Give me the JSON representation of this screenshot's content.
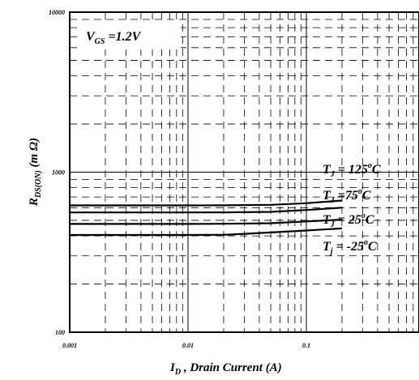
{
  "chart_data": {
    "type": "line",
    "title": "",
    "xlabel": {
      "main": "I",
      "sub": "D",
      "rest": " , Drain Current (A)"
    },
    "ylabel": {
      "main": "R",
      "sub": "DS(ON)",
      "rest": " (m Ω)"
    },
    "xscale": "log",
    "yscale": "log",
    "xlim": [
      0.001,
      1
    ],
    "ylim": [
      100,
      10000
    ],
    "x_ticks": [
      {
        "value": 0.001,
        "label": "0.001"
      },
      {
        "value": 0.01,
        "label": "0.01"
      },
      {
        "value": 0.1,
        "label": "0.1"
      }
    ],
    "y_ticks": [
      {
        "value": 100,
        "label": "100"
      },
      {
        "value": 1000,
        "label": "1000"
      },
      {
        "value": 10000,
        "label": "10000"
      }
    ],
    "grid": true,
    "annotations": {
      "vgs": {
        "main": "V",
        "sub": "GS",
        "rest": " =1.2V"
      }
    },
    "series": [
      {
        "name": "T_J = 125°C",
        "label": {
          "main": "T",
          "sub": "J",
          "rest": " = 125",
          "sup": "o",
          "unit": "C"
        },
        "x": [
          0.001,
          0.005,
          0.01,
          0.02,
          0.05,
          0.1,
          0.2
        ],
        "y": [
          620,
          620,
          620,
          621,
          625,
          640,
          665
        ]
      },
      {
        "name": "T_J = 75°C",
        "label": {
          "main": "T",
          "sub": "J",
          "rest": " =75",
          "sup": "o",
          "unit": "C"
        },
        "x": [
          0.001,
          0.005,
          0.01,
          0.02,
          0.05,
          0.1,
          0.2
        ],
        "y": [
          560,
          560,
          560,
          561,
          565,
          580,
          600
        ]
      },
      {
        "name": "T_J = 25°C",
        "label": {
          "main": "T",
          "sub": "J",
          "rest": " = 25",
          "sup": "o",
          "unit": "C"
        },
        "x": [
          0.001,
          0.005,
          0.01,
          0.02,
          0.05,
          0.1,
          0.2
        ],
        "y": [
          475,
          475,
          475,
          476,
          480,
          492,
          505
        ]
      },
      {
        "name": "T_J = -25°C",
        "label": {
          "main": "T",
          "sub": "j",
          "rest": " = -25",
          "sup": "o",
          "unit": "C"
        },
        "x": [
          0.001,
          0.005,
          0.01,
          0.02,
          0.03,
          0.05,
          0.1,
          0.2
        ],
        "y": [
          405,
          405,
          405,
          406,
          412,
          420,
          432,
          445
        ]
      }
    ]
  }
}
